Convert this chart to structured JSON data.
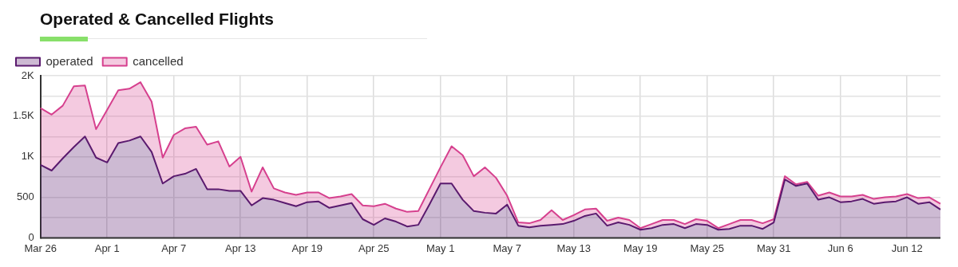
{
  "chart_data": {
    "type": "area",
    "title": "Operated & Cancelled Flights",
    "stacked": true,
    "legend": "top left",
    "grid": true,
    "marker": "none",
    "categories": [
      "Mar 26",
      null,
      null,
      null,
      null,
      null,
      "Apr 1",
      null,
      null,
      null,
      null,
      null,
      "Apr 7",
      null,
      null,
      null,
      null,
      null,
      "Apr 13",
      null,
      null,
      null,
      null,
      null,
      "Apr 19",
      null,
      null,
      null,
      null,
      null,
      "Apr 25",
      null,
      null,
      null,
      null,
      null,
      "May 1",
      null,
      null,
      null,
      null,
      null,
      "May 7",
      null,
      null,
      null,
      null,
      null,
      "May 13",
      null,
      null,
      null,
      null,
      null,
      "May 19",
      null,
      null,
      null,
      null,
      null,
      "May 25",
      null,
      null,
      null,
      null,
      null,
      "May 31",
      null,
      null,
      null,
      null,
      null,
      "Jun 6",
      null,
      null,
      null,
      null,
      null,
      "Jun 12",
      null,
      null,
      null
    ],
    "ylim": [
      0,
      2000
    ],
    "yticks": [
      0,
      {
        "value": 250,
        "label": null
      },
      {
        "value": 500,
        "label": "500"
      },
      {
        "value": 750,
        "label": null
      },
      {
        "value": 1000,
        "label": "1K"
      },
      {
        "value": 1250,
        "label": null
      },
      {
        "value": 1500,
        "label": "1.5K"
      },
      {
        "value": 1750,
        "label": null
      },
      {
        "value": 2000,
        "label": "2K"
      }
    ],
    "series": [
      {
        "name": "operated",
        "color": "#5a1a6e",
        "values": [
          900,
          830,
          980,
          1120,
          1250,
          990,
          930,
          1170,
          1200,
          1250,
          1060,
          670,
          760,
          790,
          850,
          600,
          600,
          580,
          580,
          400,
          490,
          470,
          430,
          390,
          440,
          450,
          370,
          400,
          430,
          230,
          160,
          240,
          200,
          140,
          160,
          410,
          670,
          670,
          470,
          330,
          310,
          300,
          410,
          150,
          130,
          150,
          160,
          170,
          210,
          270,
          300,
          150,
          190,
          160,
          100,
          120,
          160,
          170,
          120,
          170,
          160,
          100,
          110,
          150,
          150,
          110,
          190,
          720,
          640,
          670,
          470,
          500,
          440,
          450,
          480,
          420,
          440,
          450,
          500,
          420,
          440,
          350
        ]
      },
      {
        "name": "cancelled",
        "color": "#d6408e",
        "values": [
          700,
          690,
          650,
          750,
          630,
          350,
          650,
          650,
          640,
          670,
          620,
          320,
          510,
          560,
          520,
          550,
          590,
          300,
          420,
          170,
          380,
          140,
          130,
          140,
          120,
          110,
          120,
          110,
          110,
          170,
          230,
          180,
          160,
          180,
          170,
          190,
          200,
          460,
          550,
          430,
          560,
          440,
          110,
          40,
          50,
          70,
          180,
          50,
          70,
          80,
          60,
          60,
          60,
          60,
          20,
          50,
          60,
          50,
          50,
          60,
          50,
          20,
          60,
          70,
          70,
          70,
          40,
          40,
          20,
          20,
          50,
          60,
          70,
          60,
          50,
          60,
          60,
          60,
          40,
          70,
          60,
          70
        ]
      }
    ]
  }
}
